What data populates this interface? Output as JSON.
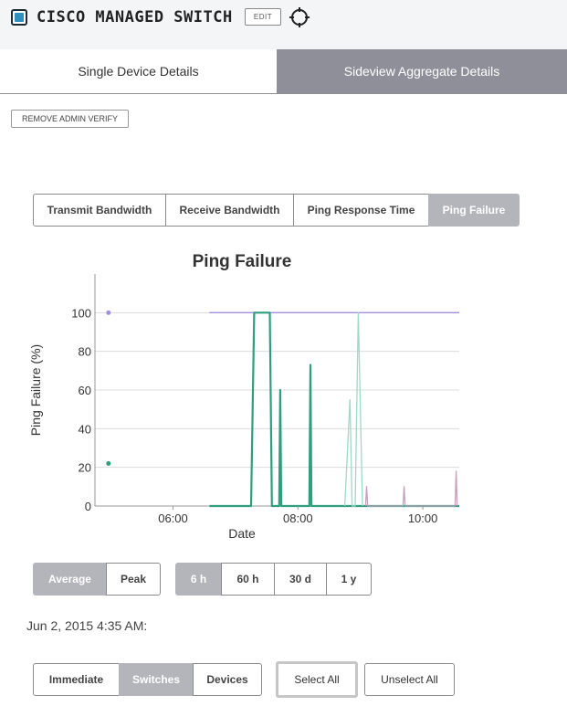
{
  "header": {
    "title": "CISCO MANAGED SWITCH",
    "edit_label": "EDIT",
    "device_icon": "switch-device-icon",
    "locate_icon": "crosshair-icon"
  },
  "tabs": [
    {
      "label": "Single Device Details",
      "active": false
    },
    {
      "label": "Sideview Aggregate Details",
      "active": true
    }
  ],
  "admin_button": "REMOVE ADMIN VERIFY",
  "metric_tabs": [
    {
      "label": "Transmit Bandwidth",
      "active": false
    },
    {
      "label": "Receive Bandwidth",
      "active": false
    },
    {
      "label": "Ping Response Time",
      "active": false
    },
    {
      "label": "Ping Failure",
      "active": true
    }
  ],
  "chart_data": {
    "type": "line",
    "title": "Ping Failure",
    "xlabel": "Date",
    "ylabel": "Ping Failure (%)",
    "xlim": [
      "04:45",
      "10:35"
    ],
    "ylim": [
      0,
      120
    ],
    "x_ticks": [
      "06:00",
      "08:00",
      "10:00"
    ],
    "y_ticks": [
      0,
      20,
      40,
      60,
      80,
      100
    ],
    "grid": true,
    "colors": {
      "switches": "#2e9e7f",
      "faint": "#9fd8c3",
      "purple": "#a58de0",
      "mauve": "#c4a0bc"
    },
    "series": [
      {
        "color": "#a58de0",
        "points": [
          [
            "04:58",
            100
          ]
        ]
      },
      {
        "color": "#a58de0",
        "points": [
          [
            "06:35",
            100
          ],
          [
            "10:35",
            100
          ]
        ]
      },
      {
        "color": "#2e9e7f",
        "points": [
          [
            "04:58",
            22
          ]
        ]
      },
      {
        "color": "#2e9e7f",
        "points": [
          [
            "06:35",
            0
          ],
          [
            "07:15",
            0
          ],
          [
            "07:18",
            100
          ],
          [
            "07:33",
            100
          ],
          [
            "07:35",
            0
          ],
          [
            "07:42",
            0
          ],
          [
            "07:43",
            60
          ],
          [
            "07:44",
            0
          ],
          [
            "08:11",
            0
          ],
          [
            "08:12",
            73
          ],
          [
            "08:13",
            0
          ],
          [
            "10:35",
            0
          ]
        ]
      },
      {
        "color": "#9fd8c3",
        "points": [
          [
            "08:45",
            0
          ],
          [
            "08:50",
            55
          ],
          [
            "08:52",
            0
          ],
          [
            "08:55",
            0
          ],
          [
            "08:58",
            100
          ],
          [
            "09:02",
            0
          ]
        ]
      },
      {
        "color": "#c4a0bc",
        "points": [
          [
            "09:05",
            0
          ],
          [
            "09:06",
            10
          ],
          [
            "09:07",
            0
          ],
          [
            "09:41",
            0
          ],
          [
            "09:42",
            10
          ],
          [
            "09:43",
            0
          ],
          [
            "10:31",
            0
          ],
          [
            "10:32",
            18
          ],
          [
            "10:33",
            0
          ]
        ]
      }
    ]
  },
  "aggregate_tabs": [
    {
      "label": "Average",
      "active": true
    },
    {
      "label": "Peak",
      "active": false
    }
  ],
  "range_tabs": [
    {
      "label": "6 h",
      "active": true
    },
    {
      "label": "60 h",
      "active": false
    },
    {
      "label": "30 d",
      "active": false
    },
    {
      "label": "1 y",
      "active": false
    }
  ],
  "timestamp": "Jun 2, 2015 4:35 AM:",
  "view_tabs": [
    {
      "label": "Immediate",
      "active": false
    },
    {
      "label": "Switches",
      "active": true
    },
    {
      "label": "Devices",
      "active": false
    }
  ],
  "select_all": "Select All",
  "unselect_all": "Unselect All"
}
